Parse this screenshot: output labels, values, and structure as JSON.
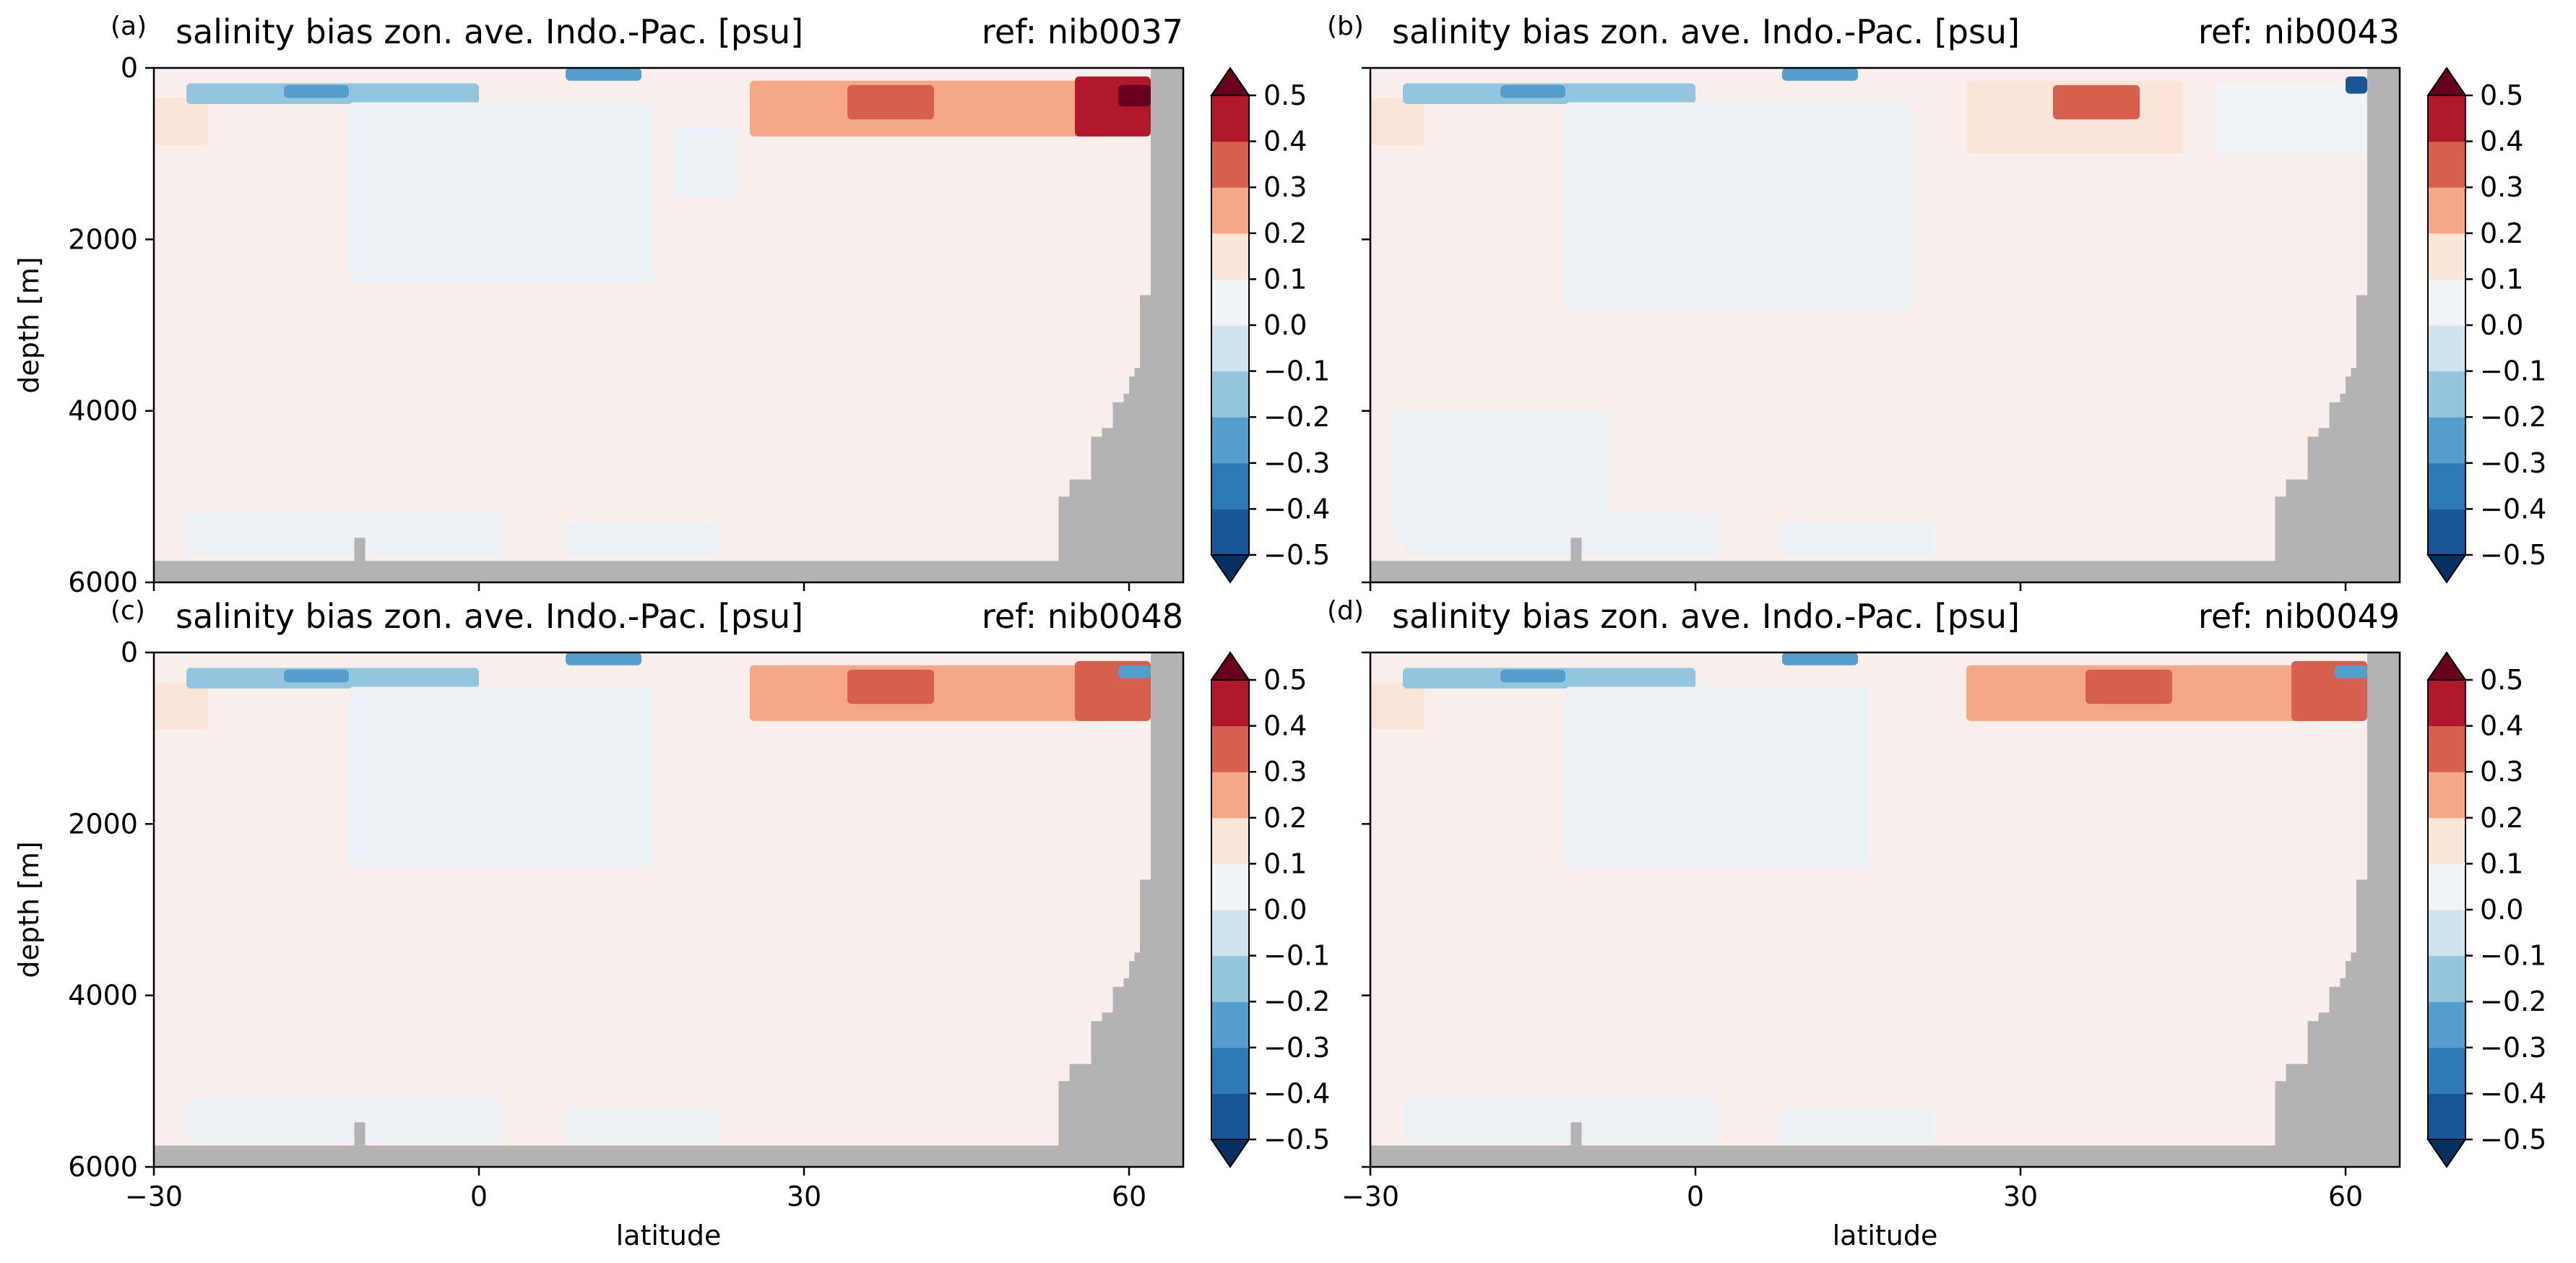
{
  "chart_data": [
    {
      "type": "heatmap",
      "panel_label": "(a)",
      "title": "salinity bias zon. ave. Indo.-Pac. [psu]",
      "ref_label": "ref: nib0037",
      "xlabel": "",
      "ylabel": "depth [m]",
      "x_ticks": [
        "−30",
        "0",
        "30",
        "60"
      ],
      "y_ticks": [
        "0",
        "2000",
        "4000",
        "6000"
      ],
      "xlim": [
        -30,
        65
      ],
      "ylim": [
        6000,
        0
      ],
      "features": [
        {
          "lat": [
            -30,
            -25
          ],
          "depth": [
            350,
            900
          ],
          "value": 0.15
        },
        {
          "lat": [
            -27,
            0
          ],
          "depth": [
            180,
            420
          ],
          "value": -0.15
        },
        {
          "lat": [
            -18,
            -12
          ],
          "depth": [
            200,
            350
          ],
          "value": -0.3
        },
        {
          "lat": [
            -12,
            16
          ],
          "depth": [
            400,
            2500
          ],
          "value": -0.05
        },
        {
          "lat": [
            8,
            15
          ],
          "depth": [
            0,
            150
          ],
          "value": -0.3
        },
        {
          "lat": [
            18,
            24
          ],
          "depth": [
            700,
            1500
          ],
          "value": -0.05
        },
        {
          "lat": [
            25,
            58
          ],
          "depth": [
            150,
            800
          ],
          "value": 0.25
        },
        {
          "lat": [
            34,
            42
          ],
          "depth": [
            200,
            600
          ],
          "value": 0.35
        },
        {
          "lat": [
            55,
            62
          ],
          "depth": [
            100,
            800
          ],
          "value": 0.4
        },
        {
          "lat": [
            59,
            62
          ],
          "depth": [
            200,
            450
          ],
          "value": 0.5
        },
        {
          "lat": [
            -27,
            2
          ],
          "depth": [
            5200,
            5700
          ],
          "value": -0.05
        },
        {
          "lat": [
            8,
            22
          ],
          "depth": [
            5300,
            5700
          ],
          "value": -0.05
        }
      ],
      "colorbar": {
        "ticks": [
          "0.5",
          "0.4",
          "0.3",
          "0.2",
          "0.1",
          "0.0",
          "−0.1",
          "−0.2",
          "−0.3",
          "−0.4",
          "−0.5"
        ],
        "range": [
          -0.5,
          0.5
        ]
      },
      "land_color": "#b3b3b3"
    },
    {
      "type": "heatmap",
      "panel_label": "(b)",
      "title": "salinity bias zon. ave. Indo.-Pac. [psu]",
      "ref_label": "ref: nib0043",
      "xlabel": "",
      "ylabel": "",
      "x_ticks": [
        "−30",
        "0",
        "30",
        "60"
      ],
      "y_ticks": [
        "",
        "",
        "",
        ""
      ],
      "xlim": [
        -30,
        65
      ],
      "ylim": [
        6000,
        0
      ],
      "features": [
        {
          "lat": [
            -30,
            -25
          ],
          "depth": [
            350,
            900
          ],
          "value": 0.2
        },
        {
          "lat": [
            -27,
            0
          ],
          "depth": [
            180,
            420
          ],
          "value": -0.15
        },
        {
          "lat": [
            -18,
            -12
          ],
          "depth": [
            200,
            350
          ],
          "value": -0.3
        },
        {
          "lat": [
            -12,
            20
          ],
          "depth": [
            400,
            2800
          ],
          "value": -0.05
        },
        {
          "lat": [
            -28,
            -8
          ],
          "depth": [
            4000,
            5500
          ],
          "value": -0.05
        },
        {
          "lat": [
            8,
            15
          ],
          "depth": [
            0,
            150
          ],
          "value": -0.2
        },
        {
          "lat": [
            25,
            45
          ],
          "depth": [
            150,
            1000
          ],
          "value": 0.2
        },
        {
          "lat": [
            33,
            41
          ],
          "depth": [
            200,
            600
          ],
          "value": 0.3
        },
        {
          "lat": [
            48,
            62
          ],
          "depth": [
            200,
            1000
          ],
          "value": 0.1
        },
        {
          "lat": [
            60,
            62
          ],
          "depth": [
            100,
            300
          ],
          "value": -0.4
        },
        {
          "lat": [
            -27,
            2
          ],
          "depth": [
            5200,
            5700
          ],
          "value": -0.05
        },
        {
          "lat": [
            8,
            22
          ],
          "depth": [
            5300,
            5700
          ],
          "value": -0.05
        }
      ],
      "colorbar": {
        "ticks": [
          "0.5",
          "0.4",
          "0.3",
          "0.2",
          "0.1",
          "0.0",
          "−0.1",
          "−0.2",
          "−0.3",
          "−0.4",
          "−0.5"
        ],
        "range": [
          -0.5,
          0.5
        ]
      },
      "land_color": "#b3b3b3"
    },
    {
      "type": "heatmap",
      "panel_label": "(c)",
      "title": "salinity bias zon. ave. Indo.-Pac. [psu]",
      "ref_label": "ref: nib0048",
      "xlabel": "latitude",
      "ylabel": "depth [m]",
      "x_ticks": [
        "−30",
        "0",
        "30",
        "60"
      ],
      "y_ticks": [
        "0",
        "2000",
        "4000",
        "6000"
      ],
      "xlim": [
        -30,
        65
      ],
      "ylim": [
        6000,
        0
      ],
      "features": [
        {
          "lat": [
            -30,
            -25
          ],
          "depth": [
            350,
            900
          ],
          "value": 0.15
        },
        {
          "lat": [
            -27,
            0
          ],
          "depth": [
            180,
            420
          ],
          "value": -0.15
        },
        {
          "lat": [
            -18,
            -12
          ],
          "depth": [
            200,
            350
          ],
          "value": -0.3
        },
        {
          "lat": [
            -12,
            16
          ],
          "depth": [
            400,
            2500
          ],
          "value": -0.05
        },
        {
          "lat": [
            8,
            15
          ],
          "depth": [
            0,
            150
          ],
          "value": -0.3
        },
        {
          "lat": [
            25,
            58
          ],
          "depth": [
            150,
            800
          ],
          "value": 0.25
        },
        {
          "lat": [
            34,
            42
          ],
          "depth": [
            200,
            600
          ],
          "value": 0.35
        },
        {
          "lat": [
            55,
            62
          ],
          "depth": [
            100,
            800
          ],
          "value": 0.3
        },
        {
          "lat": [
            59,
            62
          ],
          "depth": [
            150,
            300
          ],
          "value": -0.3
        },
        {
          "lat": [
            -27,
            2
          ],
          "depth": [
            5200,
            5700
          ],
          "value": -0.05
        },
        {
          "lat": [
            8,
            22
          ],
          "depth": [
            5300,
            5700
          ],
          "value": -0.05
        }
      ],
      "colorbar": {
        "ticks": [
          "0.5",
          "0.4",
          "0.3",
          "0.2",
          "0.1",
          "0.0",
          "−0.1",
          "−0.2",
          "−0.3",
          "−0.4",
          "−0.5"
        ],
        "range": [
          -0.5,
          0.5
        ]
      },
      "land_color": "#b3b3b3"
    },
    {
      "type": "heatmap",
      "panel_label": "(d)",
      "title": "salinity bias zon. ave. Indo.-Pac. [psu]",
      "ref_label": "ref: nib0049",
      "xlabel": "latitude",
      "ylabel": "",
      "x_ticks": [
        "−30",
        "0",
        "30",
        "60"
      ],
      "y_ticks": [
        "",
        "",
        "",
        ""
      ],
      "xlim": [
        -30,
        65
      ],
      "ylim": [
        6000,
        0
      ],
      "features": [
        {
          "lat": [
            -30,
            -25
          ],
          "depth": [
            350,
            900
          ],
          "value": 0.15
        },
        {
          "lat": [
            -27,
            0
          ],
          "depth": [
            180,
            420
          ],
          "value": -0.15
        },
        {
          "lat": [
            -18,
            -12
          ],
          "depth": [
            200,
            350
          ],
          "value": -0.3
        },
        {
          "lat": [
            -12,
            16
          ],
          "depth": [
            400,
            2500
          ],
          "value": -0.05
        },
        {
          "lat": [
            8,
            15
          ],
          "depth": [
            0,
            150
          ],
          "value": -0.3
        },
        {
          "lat": [
            25,
            58
          ],
          "depth": [
            150,
            800
          ],
          "value": 0.25
        },
        {
          "lat": [
            36,
            44
          ],
          "depth": [
            200,
            600
          ],
          "value": 0.35
        },
        {
          "lat": [
            55,
            62
          ],
          "depth": [
            100,
            800
          ],
          "value": 0.3
        },
        {
          "lat": [
            59,
            62
          ],
          "depth": [
            150,
            300
          ],
          "value": -0.3
        },
        {
          "lat": [
            -27,
            2
          ],
          "depth": [
            5200,
            5700
          ],
          "value": -0.05
        },
        {
          "lat": [
            8,
            22
          ],
          "depth": [
            5300,
            5700
          ],
          "value": -0.05
        }
      ],
      "colorbar": {
        "ticks": [
          "0.5",
          "0.4",
          "0.3",
          "0.2",
          "0.1",
          "0.0",
          "−0.1",
          "−0.2",
          "−0.3",
          "−0.4",
          "−0.5"
        ],
        "range": [
          -0.5,
          0.5
        ]
      },
      "land_color": "#b3b3b3"
    }
  ]
}
